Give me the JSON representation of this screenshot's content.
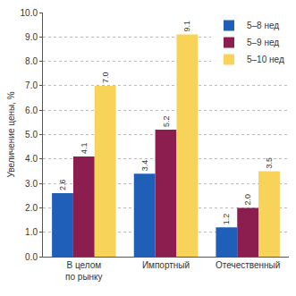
{
  "chart_data": {
    "type": "bar",
    "y_label": "Увеличение цены, %",
    "categories": [
      "В целом по рынку",
      "Импортный",
      "Отечественный"
    ],
    "series": [
      {
        "name": "5–8 нед",
        "color": "#1f5fb8",
        "values": [
          2.6,
          3.4,
          1.2
        ],
        "value_labels": [
          "2.6",
          "3.4",
          "1.2"
        ]
      },
      {
        "name": "5–9 нед",
        "color": "#8c1d4f",
        "values": [
          4.1,
          5.2,
          2.0
        ],
        "value_labels": [
          "4.1",
          "5.2",
          "2.0"
        ]
      },
      {
        "name": "5–10 нед",
        "color": "#f8d35a",
        "values": [
          7.0,
          9.1,
          3.5
        ],
        "value_labels": [
          "7.0",
          "9.1",
          "3.5"
        ]
      }
    ],
    "ylim": [
      0,
      10
    ],
    "yticks": [
      {
        "value": 0,
        "label": "0.0"
      },
      {
        "value": 1,
        "label": "1.0"
      },
      {
        "value": 2,
        "label": "2.0"
      },
      {
        "value": 3,
        "label": "3.0"
      },
      {
        "value": 4,
        "label": "4.0"
      },
      {
        "value": 5,
        "label": "5.0"
      },
      {
        "value": 6,
        "label": "6.0"
      },
      {
        "value": 7,
        "label": "7.0"
      },
      {
        "value": 8,
        "label": "8.0"
      },
      {
        "value": 9,
        "label": "9.0"
      },
      {
        "value": 10,
        "label": "10.0"
      }
    ],
    "grid": true,
    "legend": "top-right",
    "data_labels": true
  }
}
